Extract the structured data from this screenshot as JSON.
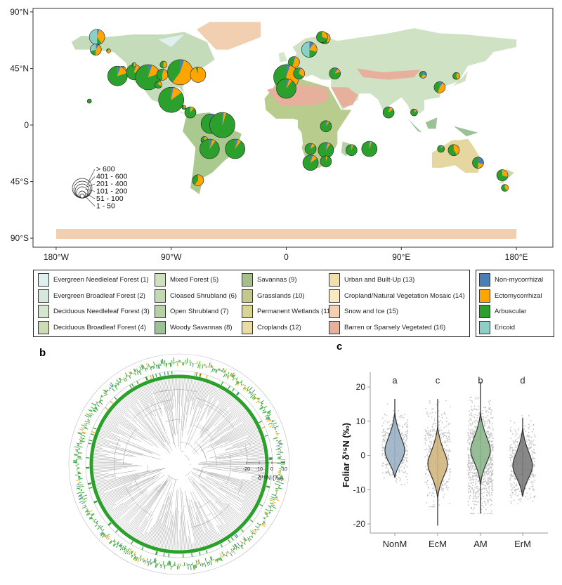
{
  "panel_labels": {
    "a": "a",
    "b": "b",
    "c": "c"
  },
  "chart_data": [
    {
      "type": "map-pie",
      "panel": "a",
      "xticks": [
        "180°W",
        "90°W",
        "0",
        "90°E",
        "180°E"
      ],
      "xtick_values": [
        -180,
        -90,
        0,
        90,
        180
      ],
      "yticks": [
        "90°N",
        "45°N",
        "0",
        "45°S",
        "90°S"
      ],
      "ytick_values": [
        90,
        45,
        0,
        -45,
        -90
      ],
      "size_legend": [
        "> 600",
        "401 - 600",
        "201 - 400",
        "101 - 200",
        "51 - 100",
        "1 - 50"
      ],
      "landcover_legend": [
        {
          "label": "Evergreen Needleleaf Forest (1)",
          "color": "#e0f0ee"
        },
        {
          "label": "Evergreen Broadleaf Forest (2)",
          "color": "#d6e8dc"
        },
        {
          "label": "Deciduous Needleleaf Forest (3)",
          "color": "#d4e6cc"
        },
        {
          "label": "Deciduous Broadleaf Forest (4)",
          "color": "#cddcb4"
        },
        {
          "label": "Mixed Forest (5)",
          "color": "#cfe0bc"
        },
        {
          "label": "Cloased Shrubland (6)",
          "color": "#c2d9b4"
        },
        {
          "label": "Open Shrubland (7)",
          "color": "#b5d2a6"
        },
        {
          "label": "Woody Savannas (8)",
          "color": "#9cc196"
        },
        {
          "label": "Savannas (9)",
          "color": "#a5c08a"
        },
        {
          "label": "Grasslands (10)",
          "color": "#c4c88a"
        },
        {
          "label": "Permanent Wetlands (11)",
          "color": "#d8d494"
        },
        {
          "label": "Croplands (12)",
          "color": "#e8dca4"
        },
        {
          "label": "Urban and Built-Up (13)",
          "color": "#f1e0ae"
        },
        {
          "label": "Cropland/Natural Vegetation Mosaic (14)",
          "color": "#f9e8c2"
        },
        {
          "label": "Snow and Ice (15)",
          "color": "#f1cfb0"
        },
        {
          "label": "Barren or Sparsely Vegetated (16)",
          "color": "#e6b09c"
        }
      ],
      "mycorrhizal_legend": [
        {
          "label": "Non-mycorrhizal",
          "color": "#4a7fb5"
        },
        {
          "label": "Ectomycorrhizal",
          "color": "#ffa500"
        },
        {
          "label": "Arbuscular",
          "color": "#2ca02c"
        },
        {
          "label": "Ericoid",
          "color": "#8ccfc8"
        }
      ],
      "sites": [
        {
          "lon": -148,
          "lat": 70,
          "size": 4,
          "f": [
            0.05,
            0.35,
            0.1,
            0.5
          ]
        },
        {
          "lon": -149,
          "lat": 60,
          "size": 3,
          "f": [
            0.1,
            0.4,
            0.2,
            0.3
          ]
        },
        {
          "lon": -139,
          "lat": 59,
          "size": 1,
          "f": [
            0,
            0.7,
            0.3,
            0
          ]
        },
        {
          "lon": -128,
          "lat": 44,
          "size": 2,
          "f": [
            0.1,
            0.3,
            0.3,
            0.3
          ]
        },
        {
          "lon": -132,
          "lat": 39,
          "size": 5,
          "f": [
            0.05,
            0.15,
            0.8,
            0
          ]
        },
        {
          "lon": -119,
          "lat": 42,
          "size": 4,
          "f": [
            0.05,
            0.25,
            0.7,
            0
          ]
        },
        {
          "lon": -108,
          "lat": 38,
          "size": 6,
          "f": [
            0.05,
            0.15,
            0.8,
            0
          ]
        },
        {
          "lon": -97,
          "lat": 40,
          "size": 3,
          "f": [
            0.05,
            0.45,
            0.5,
            0
          ]
        },
        {
          "lon": -96,
          "lat": 48,
          "size": 2,
          "f": [
            0,
            0.5,
            0.5,
            0
          ]
        },
        {
          "lon": -83,
          "lat": 42,
          "size": 6,
          "f": [
            0.05,
            0.55,
            0.4,
            0
          ]
        },
        {
          "lon": -69,
          "lat": 40,
          "size": 4,
          "f": [
            0,
            0.95,
            0.05,
            0
          ]
        },
        {
          "lon": -119,
          "lat": 48,
          "size": 1,
          "f": [
            0,
            0.6,
            0.4,
            0
          ]
        },
        {
          "lon": -100,
          "lat": 32,
          "size": 2,
          "f": [
            0,
            0.3,
            0.7,
            0
          ]
        },
        {
          "lon": -90,
          "lat": 20,
          "size": 6,
          "f": [
            0.03,
            0.12,
            0.85,
            0
          ]
        },
        {
          "lon": -75,
          "lat": 10,
          "size": 3,
          "f": [
            0,
            0.1,
            0.9,
            0
          ]
        },
        {
          "lon": -59,
          "lat": 1,
          "size": 5,
          "f": [
            0.05,
            0.05,
            0.9,
            0
          ]
        },
        {
          "lon": -50,
          "lat": 0,
          "size": 6,
          "f": [
            0.02,
            0.03,
            0.95,
            0
          ]
        },
        {
          "lon": -64,
          "lat": -12,
          "size": 2,
          "f": [
            0,
            0.2,
            0.8,
            0
          ]
        },
        {
          "lon": -60,
          "lat": -19,
          "size": 5,
          "f": [
            0.05,
            0.05,
            0.9,
            0
          ]
        },
        {
          "lon": -40,
          "lat": -19,
          "size": 5,
          "f": [
            0.05,
            0.05,
            0.9,
            0
          ]
        },
        {
          "lon": -69,
          "lat": -44,
          "size": 3,
          "f": [
            0,
            0.6,
            0.4,
            0
          ]
        },
        {
          "lon": -154,
          "lat": 19,
          "size": 1,
          "f": [
            0,
            0,
            1,
            0
          ]
        },
        {
          "lon": -80,
          "lat": 14,
          "size": 1,
          "f": [
            0,
            0.3,
            0.7,
            0
          ]
        },
        {
          "lon": 6,
          "lat": 50,
          "size": 3,
          "f": [
            0.05,
            0.5,
            0.45,
            0
          ]
        },
        {
          "lon": 0,
          "lat": 38,
          "size": 6,
          "f": [
            0.05,
            0.45,
            0.5,
            0
          ]
        },
        {
          "lon": 0,
          "lat": 29,
          "size": 5,
          "f": [
            0.05,
            0.05,
            0.9,
            0
          ]
        },
        {
          "lon": 10,
          "lat": 41,
          "size": 3,
          "f": [
            0.05,
            0.3,
            0.65,
            0
          ]
        },
        {
          "lon": 18,
          "lat": 60,
          "size": 4,
          "f": [
            0.1,
            0.2,
            0.2,
            0.5
          ]
        },
        {
          "lon": 30,
          "lat": 69,
          "size": 3,
          "f": [
            0.1,
            0.3,
            0.3,
            0.3
          ]
        },
        {
          "lon": 28,
          "lat": 70,
          "size": 3,
          "f": [
            0,
            0.3,
            0.7,
            0
          ]
        },
        {
          "lon": 38,
          "lat": 41,
          "size": 3,
          "f": [
            0.1,
            0.1,
            0.8,
            0
          ]
        },
        {
          "lon": 31,
          "lat": -1,
          "size": 3,
          "f": [
            0.05,
            0.05,
            0.9,
            0
          ]
        },
        {
          "lon": 19,
          "lat": -19,
          "size": 3,
          "f": [
            0.05,
            0.1,
            0.85,
            0
          ]
        },
        {
          "lon": 31,
          "lat": -20,
          "size": 4,
          "f": [
            0.05,
            0.05,
            0.9,
            0
          ]
        },
        {
          "lon": 19,
          "lat": -30,
          "size": 4,
          "f": [
            0.05,
            0.1,
            0.85,
            0
          ]
        },
        {
          "lon": 31,
          "lat": -29,
          "size": 3,
          "f": [
            0,
            0.05,
            0.95,
            0
          ]
        },
        {
          "lon": 51,
          "lat": -20,
          "size": 3,
          "f": [
            0,
            0.05,
            0.95,
            0
          ]
        },
        {
          "lon": 65,
          "lat": -19,
          "size": 4,
          "f": [
            0.02,
            0.03,
            0.95,
            0
          ]
        },
        {
          "lon": 80,
          "lat": 10,
          "size": 3,
          "f": [
            0.05,
            0.1,
            0.85,
            0
          ]
        },
        {
          "lon": 100,
          "lat": 10,
          "size": 2,
          "f": [
            0.05,
            0.1,
            0.85,
            0
          ]
        },
        {
          "lon": 107,
          "lat": 40,
          "size": 2,
          "f": [
            0.3,
            0.3,
            0.4,
            0
          ]
        },
        {
          "lon": 120,
          "lat": 30,
          "size": 3,
          "f": [
            0.1,
            0.45,
            0.45,
            0
          ]
        },
        {
          "lon": 133,
          "lat": 39,
          "size": 2,
          "f": [
            0.05,
            0.4,
            0.55,
            0
          ]
        },
        {
          "lon": 121,
          "lat": -19,
          "size": 2,
          "f": [
            0.05,
            0.05,
            0.9,
            0
          ]
        },
        {
          "lon": 131,
          "lat": -20,
          "size": 3,
          "f": [
            0,
            0.4,
            0.6,
            0
          ]
        },
        {
          "lon": 150,
          "lat": -30,
          "size": 3,
          "f": [
            0.3,
            0.2,
            0.5,
            0
          ]
        },
        {
          "lon": 169,
          "lat": -40,
          "size": 3,
          "f": [
            0,
            0.3,
            0.7,
            0
          ]
        },
        {
          "lon": 171,
          "lat": -50,
          "size": 2,
          "f": [
            0,
            0.4,
            0.6,
            0
          ]
        }
      ]
    },
    {
      "type": "circular-phylogeny",
      "panel": "b",
      "axis_ticks": [
        "-20",
        "-10",
        "0",
        "10"
      ],
      "axis_label": "δ¹⁵N (‰)"
    },
    {
      "type": "violin",
      "panel": "c",
      "categories": [
        "NonM",
        "EcM",
        "AM",
        "ErM"
      ],
      "ylabel": "Foliar δ¹⁵N (‰)",
      "ylim": [
        -22,
        23
      ],
      "yticks": [
        -20,
        -10,
        0,
        10,
        20
      ],
      "letters": [
        "a",
        "c",
        "b",
        "d"
      ],
      "fill_colors": [
        "#9cb3c8",
        "#d3b680",
        "#8db88d",
        "#7c7c7c"
      ],
      "median": [
        1.5,
        -2.5,
        1.5,
        -3
      ],
      "min": [
        -6.5,
        -20.5,
        -17,
        -12
      ],
      "max": [
        16.5,
        16.5,
        21.5,
        11
      ],
      "point_spread": [
        [
          -6.5,
          12
        ],
        [
          -13,
          13
        ],
        [
          -15,
          14
        ],
        [
          -12,
          9
        ]
      ]
    }
  ]
}
